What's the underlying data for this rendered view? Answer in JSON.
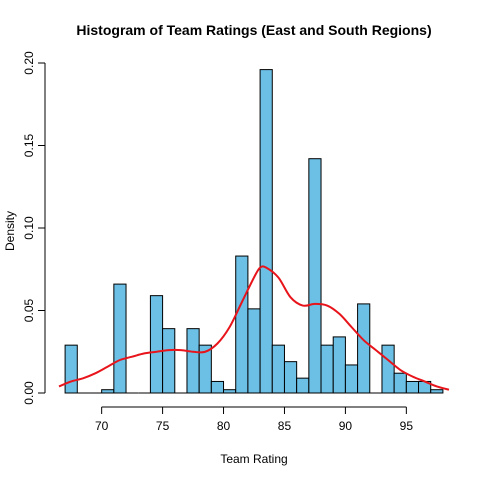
{
  "chart_data": {
    "type": "bar",
    "title": "Histogram of Team Ratings (East and South Regions)",
    "xlabel": "Team Rating",
    "ylabel": "Density",
    "xlim": [
      66.5,
      98.5
    ],
    "ylim": [
      0,
      0.2
    ],
    "bin_width": 1,
    "x_ticks": [
      70,
      75,
      80,
      85,
      90,
      95
    ],
    "y_ticks": [
      0.0,
      0.05,
      0.1,
      0.15,
      0.2
    ],
    "y_tick_labels": [
      "0.00",
      "0.05",
      "0.10",
      "0.15",
      "0.20"
    ],
    "bins": [
      {
        "x0": 67,
        "x1": 68,
        "density": 0.029
      },
      {
        "x0": 68,
        "x1": 69,
        "density": 0.0
      },
      {
        "x0": 69,
        "x1": 70,
        "density": 0.0
      },
      {
        "x0": 70,
        "x1": 71,
        "density": 0.002
      },
      {
        "x0": 71,
        "x1": 72,
        "density": 0.066
      },
      {
        "x0": 72,
        "x1": 73,
        "density": 0.0
      },
      {
        "x0": 73,
        "x1": 74,
        "density": 0.0
      },
      {
        "x0": 74,
        "x1": 75,
        "density": 0.059
      },
      {
        "x0": 75,
        "x1": 76,
        "density": 0.039
      },
      {
        "x0": 76,
        "x1": 77,
        "density": 0.0
      },
      {
        "x0": 77,
        "x1": 78,
        "density": 0.039
      },
      {
        "x0": 78,
        "x1": 79,
        "density": 0.029
      },
      {
        "x0": 79,
        "x1": 80,
        "density": 0.007
      },
      {
        "x0": 80,
        "x1": 81,
        "density": 0.002
      },
      {
        "x0": 81,
        "x1": 82,
        "density": 0.083
      },
      {
        "x0": 82,
        "x1": 83,
        "density": 0.051
      },
      {
        "x0": 83,
        "x1": 84,
        "density": 0.196
      },
      {
        "x0": 84,
        "x1": 85,
        "density": 0.029
      },
      {
        "x0": 85,
        "x1": 86,
        "density": 0.019
      },
      {
        "x0": 86,
        "x1": 87,
        "density": 0.009
      },
      {
        "x0": 87,
        "x1": 88,
        "density": 0.142
      },
      {
        "x0": 88,
        "x1": 89,
        "density": 0.029
      },
      {
        "x0": 89,
        "x1": 90,
        "density": 0.034
      },
      {
        "x0": 90,
        "x1": 91,
        "density": 0.017
      },
      {
        "x0": 91,
        "x1": 92,
        "density": 0.054
      },
      {
        "x0": 92,
        "x1": 93,
        "density": 0.0
      },
      {
        "x0": 93,
        "x1": 94,
        "density": 0.029
      },
      {
        "x0": 94,
        "x1": 95,
        "density": 0.012
      },
      {
        "x0": 95,
        "x1": 96,
        "density": 0.007
      },
      {
        "x0": 96,
        "x1": 97,
        "density": 0.007
      },
      {
        "x0": 97,
        "x1": 98,
        "density": 0.002
      }
    ],
    "density_curve": {
      "x": [
        66.5,
        67.5,
        68.5,
        69.5,
        70.5,
        71.5,
        72.5,
        73.5,
        74.5,
        75.5,
        76.5,
        77.5,
        78.5,
        79.5,
        80.5,
        81.5,
        82.5,
        83,
        83.5,
        84.5,
        85.5,
        86.5,
        87.5,
        88.5,
        89.5,
        90.5,
        91.5,
        92.5,
        93.5,
        94.5,
        95.5,
        96.5,
        97.5,
        98.5
      ],
      "y": [
        0.004,
        0.007,
        0.009,
        0.012,
        0.016,
        0.02,
        0.022,
        0.024,
        0.025,
        0.026,
        0.026,
        0.025,
        0.025,
        0.03,
        0.04,
        0.055,
        0.07,
        0.076,
        0.076,
        0.07,
        0.058,
        0.053,
        0.054,
        0.053,
        0.048,
        0.04,
        0.032,
        0.026,
        0.02,
        0.014,
        0.01,
        0.007,
        0.004,
        0.002
      ]
    },
    "colors": {
      "bar_fill": "#6CBFE5",
      "bar_stroke": "#000000",
      "curve": "#E8141B"
    },
    "grid": false,
    "legend": "none"
  }
}
